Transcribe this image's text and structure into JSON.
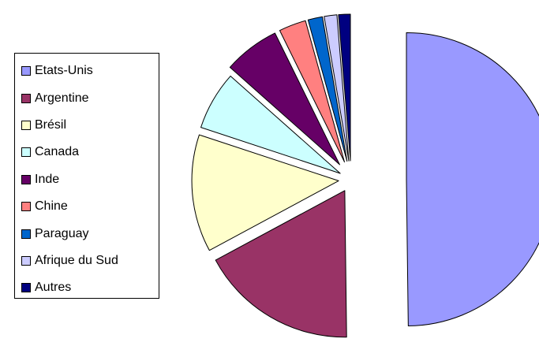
{
  "chart_data": {
    "type": "pie",
    "exploded": true,
    "start_angle_deg": 0,
    "direction": "clockwise",
    "legend_position": "left",
    "slices": [
      {
        "label": "Etats-Unis",
        "value": 50.0,
        "color": "#9999ff"
      },
      {
        "label": "Argentine",
        "value": 17.4,
        "color": "#993366"
      },
      {
        "label": "Brésil",
        "value": 13.0,
        "color": "#ffffcc"
      },
      {
        "label": "Canada",
        "value": 6.5,
        "color": "#ccffff"
      },
      {
        "label": "Inde",
        "value": 6.2,
        "color": "#660066"
      },
      {
        "label": "Chine",
        "value": 3.0,
        "color": "#ff8080"
      },
      {
        "label": "Paraguay",
        "value": 1.6,
        "color": "#0066cc"
      },
      {
        "label": "Afrique du Sud",
        "value": 1.4,
        "color": "#ccccff"
      },
      {
        "label": "Autres",
        "value": 1.3,
        "color": "#000080"
      }
    ]
  }
}
